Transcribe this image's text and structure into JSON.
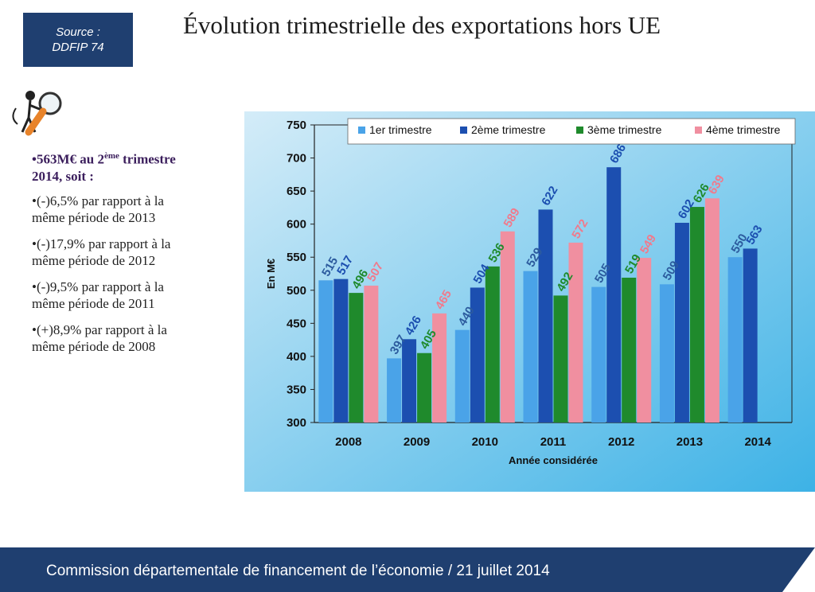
{
  "source": {
    "line1": "Source :",
    "line2": "DDFIP 74"
  },
  "title": "Évolution trimestrielle des exportations hors UE",
  "left_panel": {
    "headline_a": "•563M€ au 2",
    "headline_sup": "ème",
    "headline_b": " trimestre 2014, soit :",
    "items": [
      "•(-)6,5% par rapport à la même période de 2013",
      "•(-)17,9% par rapport à la même période de 2012",
      "•(-)9,5% par rapport à la même période de 2011",
      "•(+)8,9% par rapport à la même période de 2008"
    ]
  },
  "chart_data": {
    "type": "bar",
    "title": "",
    "xlabel": "Année considérée",
    "ylabel": "En M€",
    "ylim": [
      300,
      750
    ],
    "yticks": [
      300,
      350,
      400,
      450,
      500,
      550,
      600,
      650,
      700,
      750
    ],
    "categories": [
      "2008",
      "2009",
      "2010",
      "2011",
      "2012",
      "2013",
      "2014"
    ],
    "series": [
      {
        "name": "1er trimestre",
        "color": "#4aa3e8",
        "label_color": "#2c5b9e",
        "values": [
          515,
          397,
          440,
          529,
          505,
          509,
          550
        ]
      },
      {
        "name": "2ème trimestre",
        "color": "#1c4fb0",
        "label_color": "#1c4fb0",
        "values": [
          517,
          426,
          504,
          622,
          686,
          602,
          563
        ]
      },
      {
        "name": "3ème trimestre",
        "color": "#1f8a2c",
        "label_color": "#1f8a2c",
        "values": [
          496,
          405,
          536,
          492,
          519,
          626,
          null
        ]
      },
      {
        "name": "4ème trimestre",
        "color": "#f08fa0",
        "label_color": "#f07a8c",
        "values": [
          507,
          465,
          589,
          572,
          549,
          639,
          null
        ]
      }
    ],
    "grid": false,
    "legend_position": "top"
  },
  "footer": {
    "text": "Commission départementale de financement de l’économie / 21 juillet 2014"
  }
}
